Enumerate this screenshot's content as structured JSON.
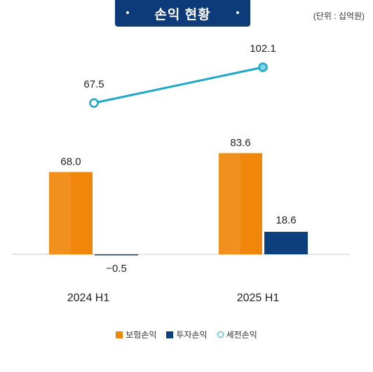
{
  "title": "손익 현황",
  "unit_note": "(단위 : 십억원)",
  "colors": {
    "title_bg": "#0d3b7a",
    "insurance": "#f0870a",
    "investment": "#0d3f7e",
    "pretax": "#1ba8c9"
  },
  "chart_data": {
    "type": "bar",
    "categories": [
      "2024 H1",
      "2025 H1"
    ],
    "series": [
      {
        "name": "보험손익",
        "type": "bar",
        "values": [
          68.0,
          83.6
        ],
        "labels": [
          "68.0",
          "83.6"
        ]
      },
      {
        "name": "투자손익",
        "type": "bar",
        "values": [
          -0.5,
          18.6
        ],
        "labels": [
          "−0.5",
          "18.6"
        ]
      },
      {
        "name": "세전손익",
        "type": "line",
        "values": [
          67.5,
          102.1
        ],
        "labels": [
          "67.5",
          "102.1"
        ]
      }
    ],
    "legend": [
      "보험손익",
      "투자손익",
      "세전손익"
    ],
    "legend_position": "bottom"
  }
}
